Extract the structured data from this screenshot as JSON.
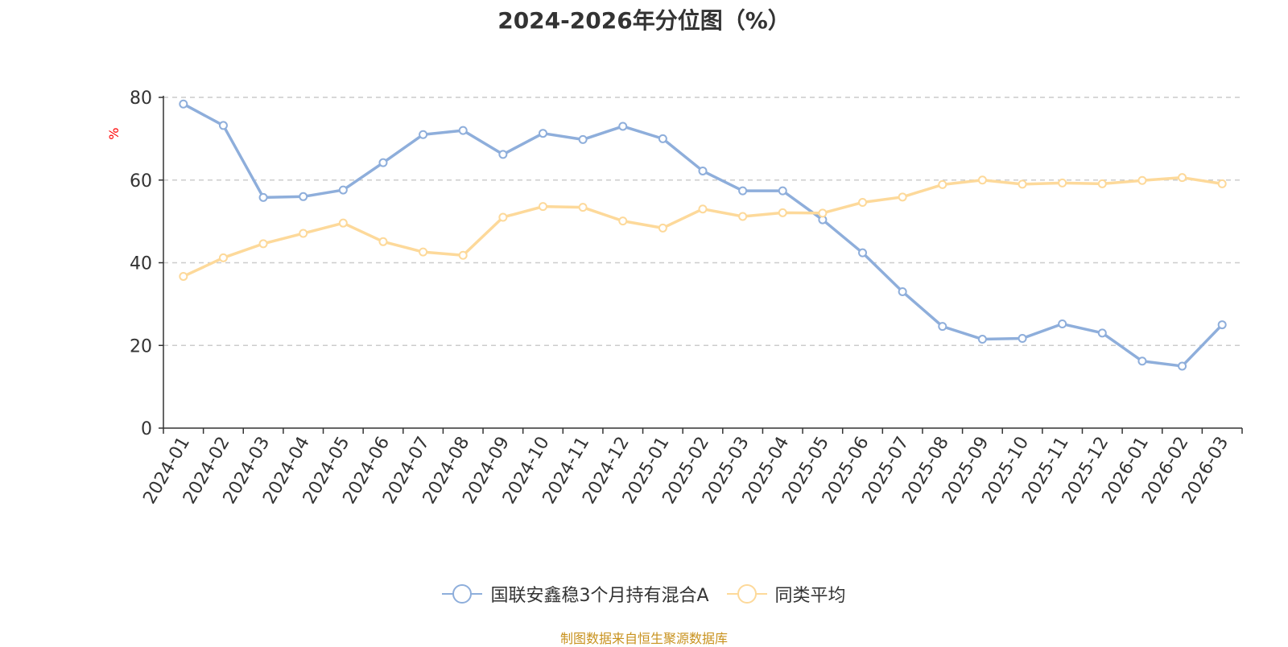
{
  "chart_data": {
    "type": "line",
    "title": "2024-2026年分位图（%）",
    "ylabel": "%",
    "xlabel": "",
    "ylim": [
      0,
      80
    ],
    "yticks": [
      0,
      20,
      40,
      60,
      80
    ],
    "grid": true,
    "legend_position": "bottom",
    "categories": [
      "2024-01",
      "2024-02",
      "2024-03",
      "2024-04",
      "2024-05",
      "2024-06",
      "2024-07",
      "2024-08",
      "2024-09",
      "2024-10",
      "2024-11",
      "2024-12",
      "2025-01",
      "2025-02",
      "2025-03",
      "2025-04",
      "2025-05",
      "2025-06",
      "2025-07",
      "2025-08",
      "2025-09",
      "2025-10",
      "2025-11",
      "2025-12",
      "2026-01",
      "2026-02",
      "2026-03"
    ],
    "series": [
      {
        "name": "国联安鑫稳3个月持有混合A",
        "color": "#8eaedb",
        "values": [
          78.4,
          73.2,
          55.8,
          56.0,
          57.6,
          64.2,
          71.0,
          72.0,
          66.2,
          71.3,
          69.8,
          73.0,
          70.0,
          62.2,
          57.4,
          57.4,
          50.4,
          42.4,
          33.0,
          24.6,
          21.5,
          21.7,
          25.2,
          23.0,
          16.2,
          15.0,
          25.0
        ]
      },
      {
        "name": "同类平均",
        "color": "#fdd99a",
        "values": [
          36.7,
          41.2,
          44.6,
          47.1,
          49.6,
          45.1,
          42.6,
          41.8,
          51.0,
          53.6,
          53.4,
          50.1,
          48.4,
          53.0,
          51.2,
          52.1,
          52.0,
          54.6,
          55.9,
          58.9,
          60.0,
          59.0,
          59.3,
          59.1,
          59.9,
          60.6,
          59.1
        ]
      }
    ]
  },
  "source": "制图数据来自恒生聚源数据库"
}
